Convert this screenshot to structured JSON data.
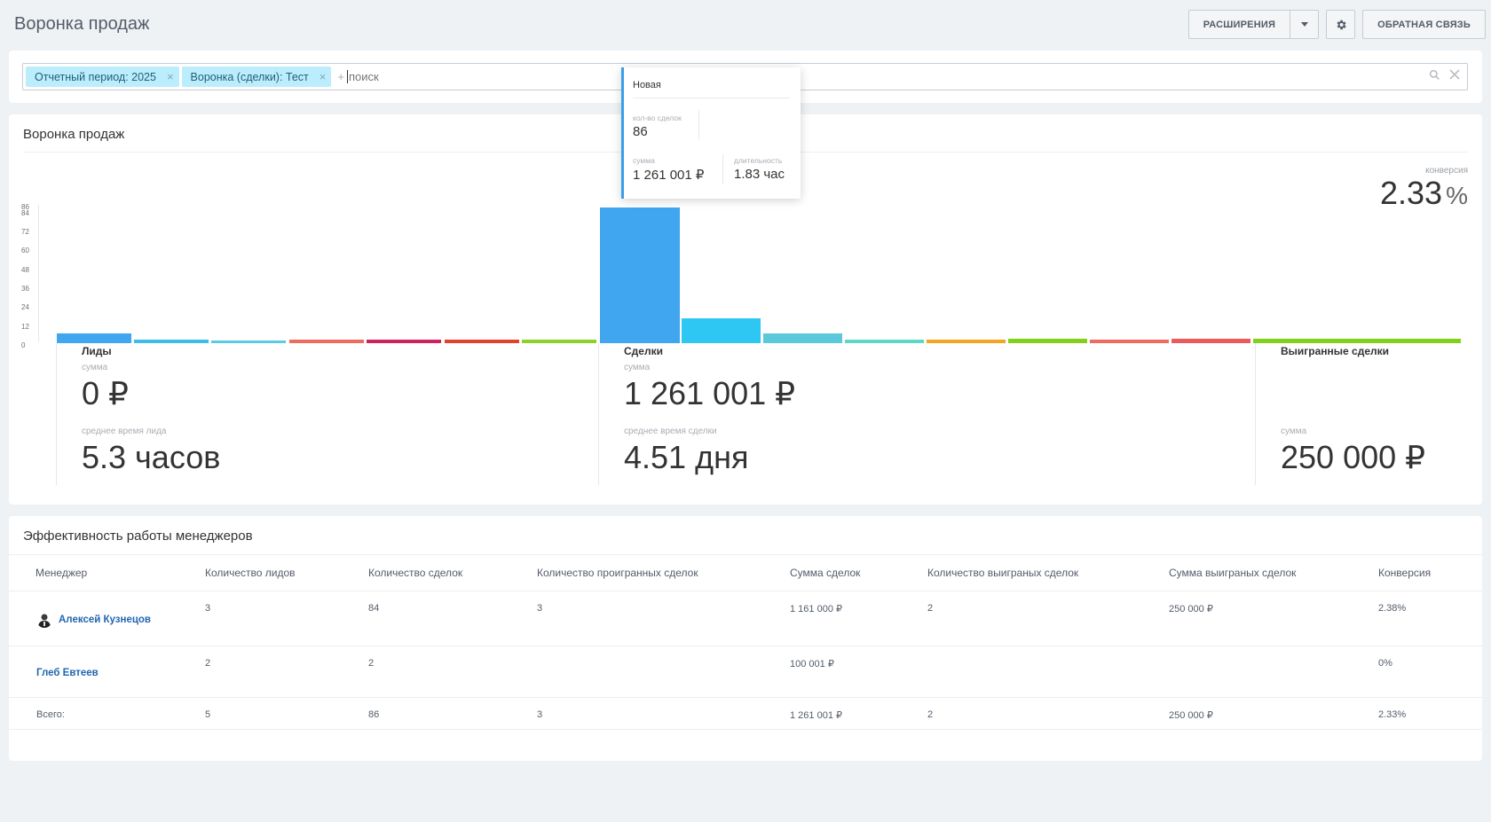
{
  "page": {
    "title": "Воронка продаж"
  },
  "toolbar": {
    "extensions_label": "РАСШИРЕНИЯ",
    "feedback_label": "ОБРАТНАЯ СВЯЗЬ"
  },
  "filter": {
    "tags": [
      "Отчетный период: 2025",
      "Воронка (сделки): Тест"
    ],
    "tag_remove": "×",
    "add_sign": "+",
    "search_placeholder": "поиск"
  },
  "funnel": {
    "title": "Воронка продаж",
    "conversion_label": "конверсия",
    "conversion_value": "2.33",
    "conversion_unit": "%",
    "leads": {
      "title": "Лиды",
      "sum_label": "сумма",
      "sum_value": "0 ₽",
      "avg_label": "среднее время лида",
      "avg_value": "5.3 часов"
    },
    "deals": {
      "title": "Сделки",
      "sum_label": "сумма",
      "sum_value": "1 261 001 ₽",
      "avg_label": "среднее время сделки",
      "avg_value": "4.51 дня"
    },
    "won": {
      "title": "Выигранные сделки",
      "sum_label": "сумма",
      "sum_value": "250 000 ₽"
    }
  },
  "chart_data": {
    "type": "bar",
    "ylim": [
      0,
      86
    ],
    "y_ticks": [
      0,
      12,
      24,
      36,
      48,
      60,
      72,
      84,
      86
    ],
    "values": [
      6,
      2,
      1,
      2,
      2,
      2,
      2,
      86,
      16,
      6,
      2,
      2,
      3,
      2,
      3,
      3
    ],
    "colors": [
      "#3fa6ef",
      "#3dbce8",
      "#5bcbe5",
      "#ec6c60",
      "#d1215d",
      "#e0422c",
      "#8dd22b",
      "#3fa6ef",
      "#2ec6f2",
      "#5cc8dc",
      "#5ed8c6",
      "#f2a522",
      "#83d01a",
      "#ec6c60",
      "#ec5b5b",
      "#83d01a"
    ]
  },
  "tooltip": {
    "title": "Новая",
    "count_label": "кол-во сделок",
    "count_value": "86",
    "sum_label": "сумма",
    "sum_value": "1 261 001 ₽",
    "duration_label": "длительность",
    "duration_value": "1.83 час"
  },
  "managers": {
    "title": "Эффективность работы менеджеров",
    "columns": [
      "Менеджер",
      "Количество лидов",
      "Количество сделок",
      "Количество проигранных сделок",
      "Сумма сделок",
      "Количество выиграных сделок",
      "Сумма выиграных сделок",
      "Конверсия"
    ],
    "rows": [
      {
        "name": "Алексей Кузнецов",
        "leads": "3",
        "deals": "84",
        "lost": "3",
        "sum": "1 161 000 ₽",
        "won": "2",
        "won_sum": "250 000 ₽",
        "conversion": "2.38%"
      },
      {
        "name": "Глеб Евтеев",
        "leads": "2",
        "deals": "2",
        "lost": "",
        "sum": "100 001 ₽",
        "won": "",
        "won_sum": "",
        "conversion": "0%"
      }
    ],
    "total": {
      "label": "Всего:",
      "leads": "5",
      "deals": "86",
      "lost": "3",
      "sum": "1 261 001 ₽",
      "won": "2",
      "won_sum": "250 000 ₽",
      "conversion": "2.33%"
    }
  }
}
